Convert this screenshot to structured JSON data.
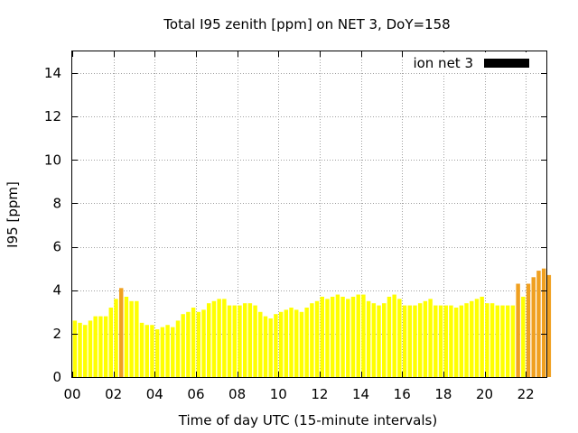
{
  "chart_data": {
    "type": "bar",
    "title": "Total I95 zenith [ppm] on NET 3, DoY=158",
    "xlabel": "Time of day UTC (15-minute intervals)",
    "ylabel": "I95 [ppm]",
    "xlim": [
      0,
      23
    ],
    "ylim": [
      0,
      15
    ],
    "x_tick_labels": [
      "00",
      "02",
      "04",
      "06",
      "08",
      "10",
      "12",
      "14",
      "16",
      "18",
      "20",
      "22"
    ],
    "x_tick_hours": [
      0,
      2,
      4,
      6,
      8,
      10,
      12,
      14,
      16,
      18,
      20,
      22
    ],
    "y_ticks": [
      0,
      2,
      4,
      6,
      8,
      10,
      12,
      14
    ],
    "grid": true,
    "legend_position": "top-right",
    "legend_color": "#000000",
    "interval_hours": 0.25,
    "colors": {
      "normal": "#ffff00",
      "elevated": "#f0a020"
    },
    "series": [
      {
        "name": "ion net 3",
        "values": [
          2.6,
          2.5,
          2.4,
          2.6,
          2.8,
          2.8,
          2.8,
          3.2,
          3.6,
          4.1,
          3.7,
          3.5,
          3.5,
          2.5,
          2.4,
          2.4,
          2.2,
          2.3,
          2.4,
          2.3,
          2.6,
          2.9,
          3.0,
          3.2,
          3.0,
          3.1,
          3.4,
          3.5,
          3.6,
          3.6,
          3.3,
          3.3,
          3.3,
          3.4,
          3.4,
          3.3,
          3.0,
          2.8,
          2.7,
          2.9,
          3.0,
          3.1,
          3.2,
          3.1,
          3.0,
          3.2,
          3.4,
          3.5,
          3.7,
          3.6,
          3.7,
          3.8,
          3.7,
          3.6,
          3.7,
          3.8,
          3.8,
          3.5,
          3.4,
          3.3,
          3.4,
          3.7,
          3.8,
          3.6,
          3.3,
          3.3,
          3.3,
          3.4,
          3.5,
          3.6,
          3.3,
          3.3,
          3.3,
          3.3,
          3.2,
          3.3,
          3.4,
          3.5,
          3.6,
          3.7,
          3.4,
          3.4,
          3.3,
          3.3,
          3.3,
          3.3,
          4.3,
          3.7,
          4.3,
          4.6,
          4.9,
          5.0,
          4.7
        ],
        "elevated_flags": [
          0,
          0,
          0,
          0,
          0,
          0,
          0,
          0,
          0,
          1,
          0,
          0,
          0,
          0,
          0,
          0,
          0,
          0,
          0,
          0,
          0,
          0,
          0,
          0,
          0,
          0,
          0,
          0,
          0,
          0,
          0,
          0,
          0,
          0,
          0,
          0,
          0,
          0,
          0,
          0,
          0,
          0,
          0,
          0,
          0,
          0,
          0,
          0,
          0,
          0,
          0,
          0,
          0,
          0,
          0,
          0,
          0,
          0,
          0,
          0,
          0,
          0,
          0,
          0,
          0,
          0,
          0,
          0,
          0,
          0,
          0,
          0,
          0,
          0,
          0,
          0,
          0,
          0,
          0,
          0,
          0,
          0,
          0,
          0,
          0,
          0,
          1,
          0,
          1,
          1,
          1,
          1,
          1
        ]
      }
    ]
  }
}
